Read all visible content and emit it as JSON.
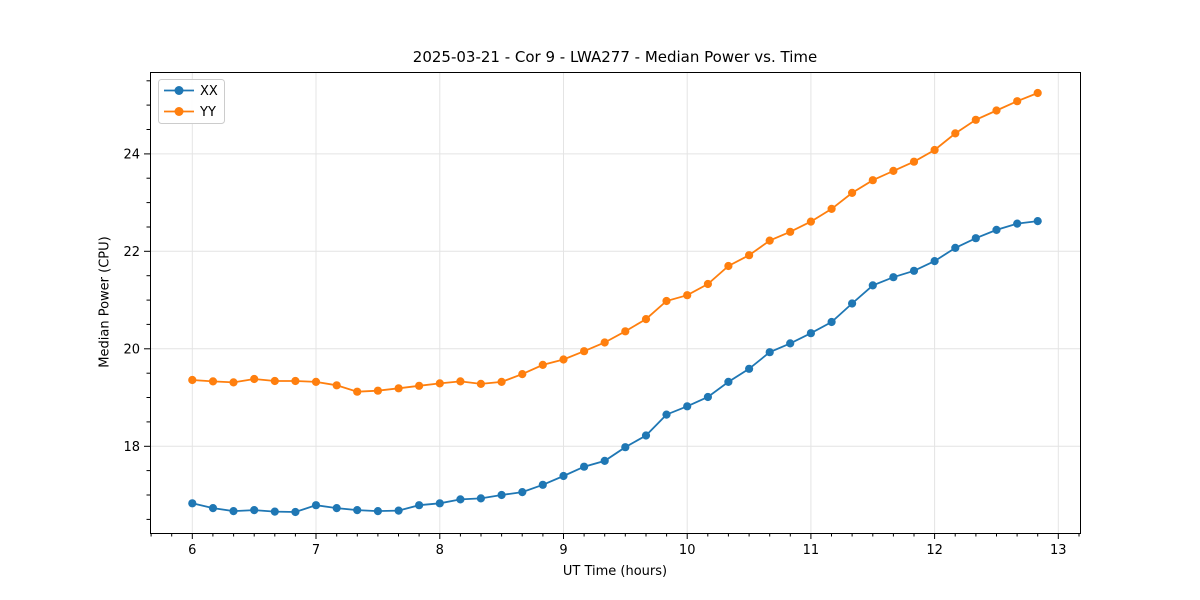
{
  "chart_data": {
    "type": "line",
    "title": "2025-03-21 - Cor 9 - LWA277 - Median Power vs. Time",
    "xlabel": "UT Time (hours)",
    "ylabel": "Median Power (CPU)",
    "xlim": [
      5.658,
      13.175
    ],
    "ylim": [
      16.22,
      25.68
    ],
    "x_ticks": [
      6,
      7,
      8,
      9,
      10,
      11,
      12,
      13
    ],
    "y_ticks": [
      18,
      20,
      22,
      24
    ],
    "x_minor_step": 0.16667,
    "y_minor_step": 0.5,
    "grid": true,
    "legend_position": "upper left",
    "grid_color": "#e4e4e4",
    "x": [
      6.0,
      6.167,
      6.333,
      6.5,
      6.667,
      6.833,
      7.0,
      7.167,
      7.333,
      7.5,
      7.667,
      7.833,
      8.0,
      8.167,
      8.333,
      8.5,
      8.667,
      8.833,
      9.0,
      9.167,
      9.333,
      9.5,
      9.667,
      9.833,
      10.0,
      10.167,
      10.333,
      10.5,
      10.667,
      10.833,
      11.0,
      11.167,
      11.333,
      11.5,
      11.667,
      11.833,
      12.0,
      12.167,
      12.333,
      12.5,
      12.667,
      12.833
    ],
    "series": [
      {
        "name": "XX",
        "color": "#1f77b4",
        "values": [
          16.83,
          16.73,
          16.67,
          16.69,
          16.66,
          16.65,
          16.79,
          16.73,
          16.69,
          16.67,
          16.68,
          16.79,
          16.83,
          16.91,
          16.93,
          17.0,
          17.06,
          17.21,
          17.39,
          17.58,
          17.7,
          17.98,
          18.22,
          18.65,
          18.82,
          19.01,
          19.32,
          19.59,
          19.93,
          20.11,
          20.32,
          20.55,
          20.93,
          21.3,
          21.47,
          21.6,
          21.8,
          22.07,
          22.27,
          22.44,
          22.57,
          22.62
        ]
      },
      {
        "name": "YY",
        "color": "#ff7f0e",
        "values": [
          19.36,
          19.33,
          19.31,
          19.38,
          19.34,
          19.34,
          19.32,
          19.25,
          19.12,
          19.14,
          19.19,
          19.24,
          19.29,
          19.33,
          19.28,
          19.32,
          19.48,
          19.67,
          19.78,
          19.95,
          20.13,
          20.36,
          20.61,
          20.98,
          21.1,
          21.33,
          21.7,
          21.92,
          22.22,
          22.4,
          22.61,
          22.87,
          23.2,
          23.46,
          23.65,
          23.84,
          24.08,
          24.42,
          24.7,
          24.89,
          25.08,
          25.25
        ]
      }
    ]
  }
}
